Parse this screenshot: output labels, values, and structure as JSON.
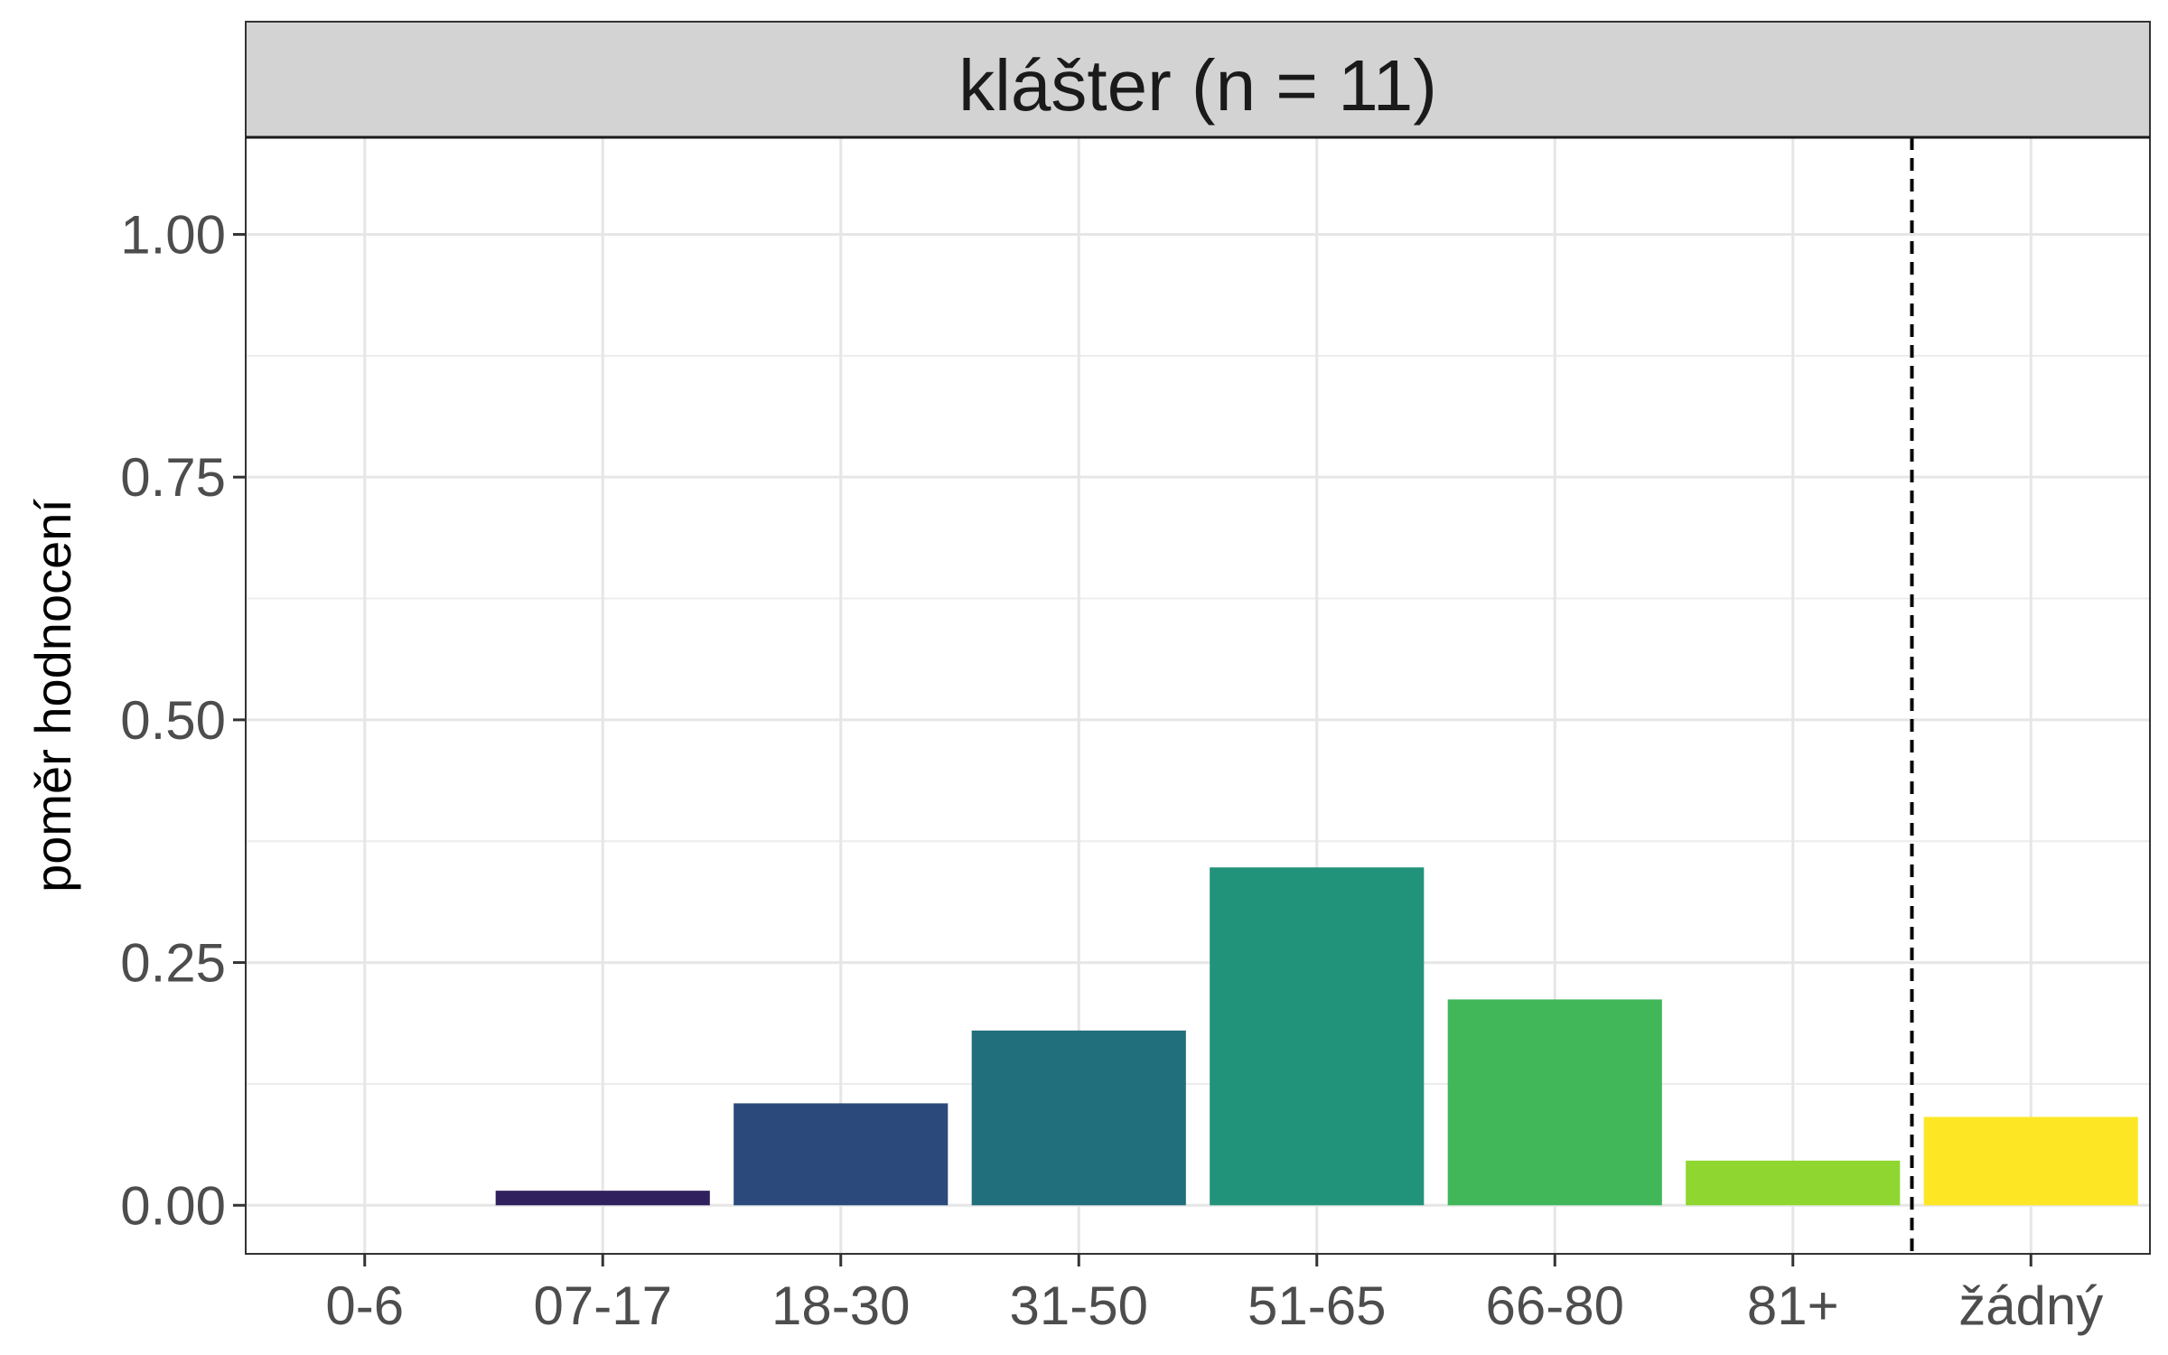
{
  "chart_data": {
    "type": "bar",
    "title": "klášter (n = 11)",
    "xlabel": "",
    "ylabel": "poměr hodnocení",
    "categories": [
      "0-6",
      "07-17",
      "18-30",
      "31-50",
      "51-65",
      "66-80",
      "81+",
      "žádný"
    ],
    "values": [
      0.0,
      0.015,
      0.105,
      0.18,
      0.348,
      0.212,
      0.046,
      0.091
    ],
    "colors": [
      "#440154",
      "#30215e",
      "#2b4a7b",
      "#216e7c",
      "#21937a",
      "#41b75a",
      "#8fd630",
      "#fde725"
    ],
    "ylim": [
      -0.05,
      1.1
    ],
    "yticks": [
      "0.00",
      "0.25",
      "0.50",
      "0.75",
      "1.00"
    ],
    "separator": {
      "type": "dashed-vertical",
      "between": [
        "81+",
        "žádný"
      ]
    },
    "grid": true,
    "legend": "none"
  }
}
